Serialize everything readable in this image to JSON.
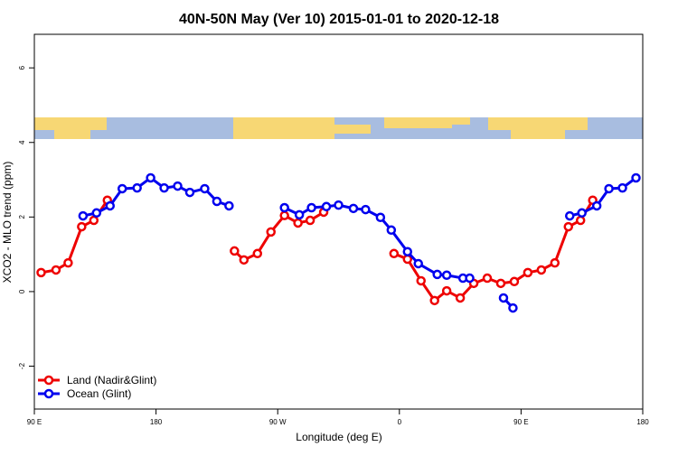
{
  "chart_data": {
    "type": "line",
    "title": "40N-50N May (Ver 10)   2015-01-01 to 2020-12-18",
    "x_label": "Longitude (deg E)",
    "y_label": "XCO2 - MLO trend (ppm)",
    "xlim": [
      90,
      540
    ],
    "xticks": [
      {
        "value": 90,
        "label": "90 E"
      },
      180,
      {
        "value": 270,
        "label": "90 W"
      },
      {
        "value": 360,
        "label": "0"
      },
      {
        "value": 450,
        "label": "90 E"
      },
      {
        "value": 540,
        "label": "180"
      }
    ],
    "ylim": [
      -3.15,
      6.9
    ],
    "yticks": [
      -2,
      0,
      2,
      4,
      6
    ],
    "legend": "bottom-left",
    "series": [
      {
        "name": "Land (Nadir&Glint)",
        "color": "#ee0000",
        "x": [
          95,
          106,
          115,
          125,
          134,
          144,
          null,
          238,
          245,
          255,
          265,
          275,
          285,
          294,
          304,
          null,
          356,
          366,
          376,
          386,
          395,
          405,
          415,
          425,
          435,
          445,
          455,
          465,
          475,
          485,
          494,
          503
        ],
        "values": [
          0.51,
          0.58,
          0.77,
          1.74,
          1.91,
          2.45,
          null,
          1.09,
          0.85,
          1.02,
          1.6,
          2.04,
          1.84,
          1.91,
          2.13,
          null,
          1.02,
          0.87,
          0.29,
          -0.24,
          0.02,
          -0.17,
          0.22,
          0.36,
          0.22,
          0.27,
          0.51,
          0.58,
          0.77,
          1.74,
          1.91,
          2.45
        ]
      },
      {
        "name": "Ocean (Glint)",
        "color": "#0000ee",
        "x": [
          126,
          136,
          146,
          155,
          166,
          176,
          186,
          196,
          205,
          216,
          225,
          234,
          null,
          275,
          286,
          295,
          306,
          315,
          326,
          335,
          346,
          354,
          366,
          374,
          388,
          395,
          407,
          412,
          null,
          437,
          444,
          null,
          486,
          495,
          506,
          515,
          525,
          535
        ],
        "values": [
          2.03,
          2.11,
          2.3,
          2.76,
          2.78,
          3.05,
          2.78,
          2.83,
          2.66,
          2.76,
          2.42,
          2.3,
          null,
          2.25,
          2.06,
          2.25,
          2.28,
          2.32,
          2.23,
          2.2,
          1.99,
          1.65,
          1.07,
          0.75,
          0.46,
          0.44,
          0.36,
          0.36,
          null,
          -0.17,
          -0.44,
          null,
          2.03,
          2.11,
          2.3,
          2.76,
          2.78,
          3.05
        ]
      }
    ]
  }
}
